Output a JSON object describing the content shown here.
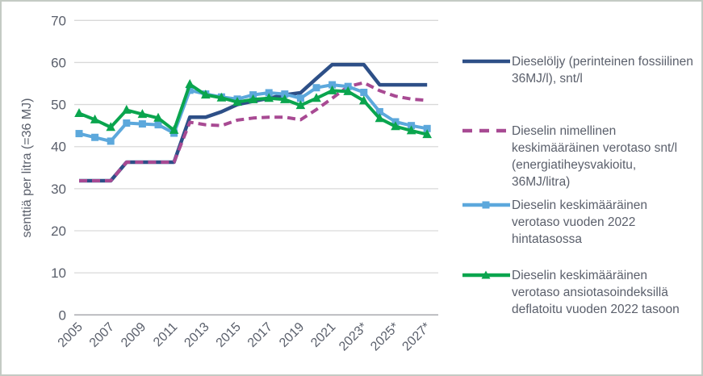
{
  "chart_data": {
    "type": "line",
    "years": [
      2005,
      2006,
      2007,
      2008,
      2009,
      2010,
      2011,
      2012,
      2013,
      2014,
      2015,
      2016,
      2017,
      2018,
      2019,
      2020,
      2021,
      2022,
      2023,
      2024,
      2025,
      2026,
      2027
    ],
    "x_tick_labels": [
      "2005",
      "2007",
      "2009",
      "2011",
      "2013",
      "2015",
      "2017",
      "2019",
      "2021",
      "2023*",
      "2025*",
      "2027*"
    ],
    "ylabel": "senttiä per litra (=36 MJ)",
    "ylim": [
      0,
      70
    ],
    "yticks": [
      0,
      10,
      20,
      30,
      40,
      50,
      60,
      70
    ],
    "grid": true,
    "legend_position": "right",
    "series": [
      {
        "name": "Dieselöljy (perinteinen fossiilinen 36MJ/l), snt/l",
        "color": "#2d4f87",
        "style": "solid",
        "marker": "none",
        "values": [
          31.9,
          31.9,
          31.9,
          36.3,
          36.3,
          36.3,
          36.3,
          47,
          47,
          48.3,
          50,
          50.8,
          51.5,
          52.3,
          52.8,
          56.2,
          59.5,
          59.5,
          59.5,
          54.7,
          54.7,
          54.7,
          54.7
        ]
      },
      {
        "name": "Dieselin nimellinen keskimääräinen verotaso snt/l (energiatiheysvakioitu, 36MJ/litra)",
        "color": "#a84a93",
        "style": "dashed",
        "marker": "none",
        "values": [
          31.9,
          31.9,
          31.9,
          36.3,
          36.3,
          36.3,
          36.3,
          45.8,
          45.2,
          45,
          46.3,
          46.8,
          47,
          47,
          46.4,
          48.8,
          51.5,
          54.3,
          55.2,
          53.3,
          52,
          51.3,
          51
        ]
      },
      {
        "name": "Dieselin keskimääräinen verotaso vuoden 2022 hintatasossa",
        "color": "#5ca8dc",
        "style": "solid",
        "marker": "square",
        "values": [
          43.1,
          42.2,
          41.3,
          45.6,
          45.4,
          45.2,
          43.2,
          53.4,
          52.5,
          51.8,
          51.3,
          52.3,
          52.8,
          52.5,
          51.5,
          54,
          54.7,
          54.3,
          52.9,
          48.3,
          45.9,
          45,
          44.3
        ]
      },
      {
        "name": "Dieselin keskimääräinen verotaso ansiotasoindeksillä deflatoitu vuoden 2022 tasoon",
        "color": "#0aa54e",
        "style": "solid",
        "marker": "triangle",
        "values": [
          47.9,
          46.4,
          44.6,
          48.7,
          47.7,
          46.8,
          43.9,
          54.8,
          52.3,
          51.6,
          50.6,
          51.2,
          51.5,
          51.2,
          49.8,
          51.5,
          53.3,
          53.1,
          50.9,
          46.7,
          44.8,
          43.8,
          42.9
        ]
      }
    ],
    "style": {
      "grid_color": "#d9d9d9",
      "zero_line_color": "#a8aaaf",
      "axis_text_color": "#5a5f6b",
      "frame_border_color": "#c4cbc4",
      "background": "#ffffff"
    }
  }
}
